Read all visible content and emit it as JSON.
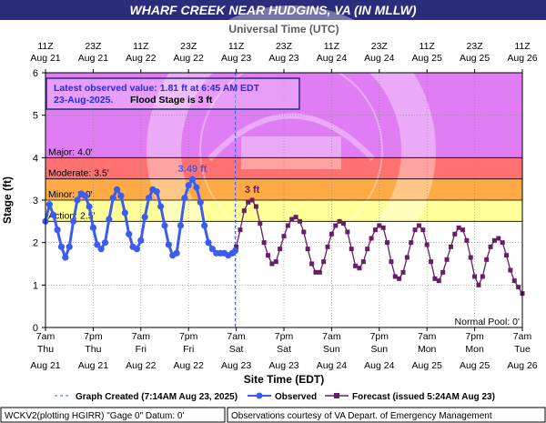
{
  "header": {
    "title": "WHARF CREEK NEAR HUDGINS, VA (IN MLLW)"
  },
  "top_axis": {
    "title": "Universal Time (UTC)",
    "ticks": [
      {
        "t": 0,
        "l1": "11Z",
        "l2": "Aug 21"
      },
      {
        "t": 12,
        "l1": "23Z",
        "l2": "Aug 21"
      },
      {
        "t": 24,
        "l1": "11Z",
        "l2": "Aug 22"
      },
      {
        "t": 36,
        "l1": "23Z",
        "l2": "Aug 22"
      },
      {
        "t": 48,
        "l1": "11Z",
        "l2": "Aug 23"
      },
      {
        "t": 60,
        "l1": "23Z",
        "l2": "Aug 23"
      },
      {
        "t": 72,
        "l1": "11Z",
        "l2": "Aug 24"
      },
      {
        "t": 84,
        "l1": "23Z",
        "l2": "Aug 24"
      },
      {
        "t": 96,
        "l1": "11Z",
        "l2": "Aug 25"
      },
      {
        "t": 108,
        "l1": "23Z",
        "l2": "Aug 25"
      },
      {
        "t": 120,
        "l1": "11Z",
        "l2": "Aug 26"
      }
    ]
  },
  "bottom_axis": {
    "title": "Site Time (EDT)",
    "ticks": [
      {
        "t": 0,
        "l1": "7am",
        "l2": "Thu",
        "l3": "Aug 21"
      },
      {
        "t": 12,
        "l1": "7pm",
        "l2": "Thu",
        "l3": "Aug 21"
      },
      {
        "t": 24,
        "l1": "7am",
        "l2": "Fri",
        "l3": "Aug 22"
      },
      {
        "t": 36,
        "l1": "7pm",
        "l2": "Fri",
        "l3": "Aug 22"
      },
      {
        "t": 48,
        "l1": "7am",
        "l2": "Sat",
        "l3": "Aug 23"
      },
      {
        "t": 60,
        "l1": "7pm",
        "l2": "Sat",
        "l3": "Aug 23"
      },
      {
        "t": 72,
        "l1": "7am",
        "l2": "Sun",
        "l3": "Aug 24"
      },
      {
        "t": 84,
        "l1": "7pm",
        "l2": "Sun",
        "l3": "Aug 24"
      },
      {
        "t": 96,
        "l1": "7am",
        "l2": "Mon",
        "l3": "Aug 25"
      },
      {
        "t": 108,
        "l1": "7pm",
        "l2": "Mon",
        "l3": "Aug 25"
      },
      {
        "t": 120,
        "l1": "7am",
        "l2": "Tue",
        "l3": "Aug 26"
      }
    ]
  },
  "infobox": {
    "line1": "Latest observed value: 1.81 ft at 6:45 AM EDT",
    "line2a": "23-Aug-2025.",
    "line2b": "Flood Stage is 3 ft"
  },
  "legend": {
    "graph_created": "Graph Created (7:14AM Aug 23, 2025)",
    "observed": "Observed",
    "forecast": "Forecast (issued 5:24AM Aug 23)"
  },
  "footer": {
    "left": "WCKV2(plotting HGIRR) \"Gage 0\" Datum: 0'",
    "right": "Observations courtesy of VA Depart. of Emergency Management"
  },
  "colors": {
    "major": "#cc66ff",
    "major_band": "#e07cf4",
    "moderate_band": "#ff7070",
    "minor_band": "#ffaa44",
    "action_band": "#ffff99",
    "observed": "#3b5cf0",
    "forecast": "#661f66",
    "title_bar": "#2c2c7c"
  },
  "chart_data": {
    "type": "line",
    "ylabel": "Stage (ft)",
    "xlabel": "Site Time (EDT)",
    "x_units": "hours after 7am EDT Thu Aug 21, 2025",
    "ylim": [
      0,
      6
    ],
    "xlim": [
      0,
      120
    ],
    "grid": true,
    "y_ticks": [
      0,
      1,
      2,
      3,
      4,
      5,
      6
    ],
    "flood_categories": [
      {
        "name": "Major",
        "label": "Major: 4.0'",
        "from": 4.0,
        "to": 6.0
      },
      {
        "name": "Moderate",
        "label": "Moderate: 3.5'",
        "from": 3.5,
        "to": 4.0
      },
      {
        "name": "Minor",
        "label": "Minor: 3.0'",
        "from": 3.0,
        "to": 3.5
      },
      {
        "name": "Action",
        "label": "Action: 2.5'",
        "from": 2.5,
        "to": 3.0
      }
    ],
    "normal_pool_label": "Normal Pool: 0'",
    "graph_created_x": 47.75,
    "series": [
      {
        "name": "Observed",
        "style": "line-with-circles",
        "x": [
          0,
          1,
          2,
          3,
          4,
          5,
          6,
          7,
          8,
          9,
          10,
          11,
          12,
          13,
          14,
          15,
          16,
          17,
          18,
          19,
          20,
          21,
          22,
          23,
          24,
          25,
          26,
          27,
          28,
          29,
          30,
          31,
          32,
          33,
          34,
          35,
          36,
          37,
          38,
          39,
          40,
          41,
          42,
          43,
          44,
          45,
          46,
          47,
          47.75
        ],
        "y": [
          2.5,
          2.9,
          2.65,
          2.3,
          1.9,
          1.65,
          1.9,
          2.5,
          3.0,
          3.15,
          3.1,
          2.85,
          2.35,
          1.95,
          1.85,
          2.0,
          2.55,
          3.05,
          3.25,
          3.1,
          2.7,
          2.2,
          1.9,
          1.85,
          2.05,
          2.6,
          3.05,
          3.25,
          3.2,
          2.85,
          2.4,
          1.95,
          1.7,
          1.75,
          2.4,
          3.05,
          3.35,
          3.49,
          3.3,
          2.95,
          2.4,
          2.0,
          1.85,
          1.75,
          1.75,
          1.75,
          1.7,
          1.75,
          1.81
        ]
      },
      {
        "name": "Forecast",
        "style": "line-with-squares",
        "x": [
          48,
          49,
          50,
          51,
          52,
          53,
          54,
          55,
          56,
          57,
          58,
          59,
          60,
          61,
          62,
          63,
          64,
          65,
          66,
          67,
          68,
          69,
          70,
          71,
          72,
          73,
          74,
          75,
          76,
          77,
          78,
          79,
          80,
          81,
          82,
          83,
          84,
          85,
          86,
          87,
          88,
          89,
          90,
          91,
          92,
          93,
          94,
          95,
          96,
          97,
          98,
          99,
          100,
          101,
          102,
          103,
          104,
          105,
          106,
          107,
          108,
          109,
          110,
          111,
          112,
          113,
          114,
          115,
          116,
          117,
          118,
          119,
          120
        ],
        "y": [
          1.9,
          2.3,
          2.75,
          2.95,
          3.0,
          2.85,
          2.45,
          2.0,
          1.7,
          1.5,
          1.55,
          1.85,
          2.15,
          2.4,
          2.55,
          2.6,
          2.5,
          2.25,
          1.85,
          1.5,
          1.3,
          1.3,
          1.55,
          1.9,
          2.2,
          2.4,
          2.5,
          2.45,
          2.25,
          1.85,
          1.45,
          1.4,
          1.55,
          1.85,
          2.1,
          2.3,
          2.4,
          2.35,
          2.0,
          1.55,
          1.2,
          1.15,
          1.3,
          1.65,
          2.0,
          2.3,
          2.4,
          2.3,
          1.95,
          1.55,
          1.15,
          1.1,
          1.3,
          1.6,
          1.9,
          2.2,
          2.35,
          2.3,
          2.05,
          1.65,
          1.2,
          1.0,
          1.2,
          1.6,
          1.9,
          2.05,
          2.1,
          2.0,
          1.7,
          1.35,
          1.1,
          0.95,
          0.8
        ]
      }
    ],
    "annotations": [
      {
        "text": "3.49 ft",
        "x": 37,
        "y": 3.49,
        "series": "Observed"
      },
      {
        "text": "3 ft",
        "x": 52,
        "y": 3.0,
        "series": "Forecast"
      }
    ]
  }
}
